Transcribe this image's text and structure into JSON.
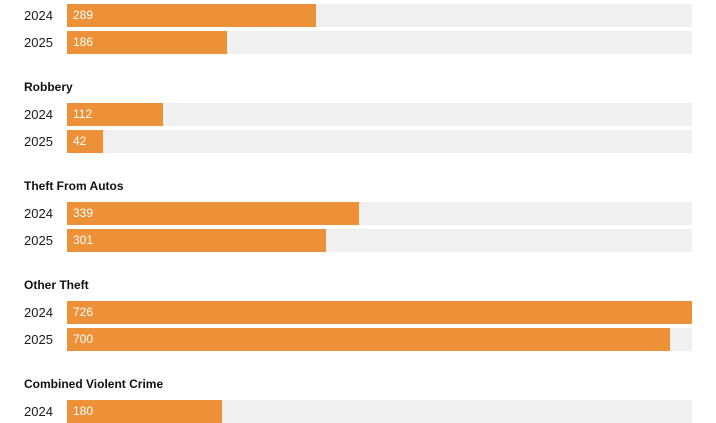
{
  "chart_data": {
    "type": "bar",
    "orientation": "horizontal",
    "xlim": [
      0,
      726
    ],
    "bar_color": "#ec9137",
    "track_color": "#f0f0f0",
    "groups": [
      {
        "title": "",
        "rows": [
          {
            "year": "2024",
            "value": 289
          },
          {
            "year": "2025",
            "value": 186
          }
        ]
      },
      {
        "title": "Robbery",
        "rows": [
          {
            "year": "2024",
            "value": 112
          },
          {
            "year": "2025",
            "value": 42
          }
        ]
      },
      {
        "title": "Theft From Autos",
        "rows": [
          {
            "year": "2024",
            "value": 339
          },
          {
            "year": "2025",
            "value": 301
          }
        ]
      },
      {
        "title": "Other Theft",
        "rows": [
          {
            "year": "2024",
            "value": 726
          },
          {
            "year": "2025",
            "value": 700
          }
        ]
      },
      {
        "title": "Combined Violent Crime",
        "rows": [
          {
            "year": "2024",
            "value": 180
          }
        ]
      }
    ]
  }
}
